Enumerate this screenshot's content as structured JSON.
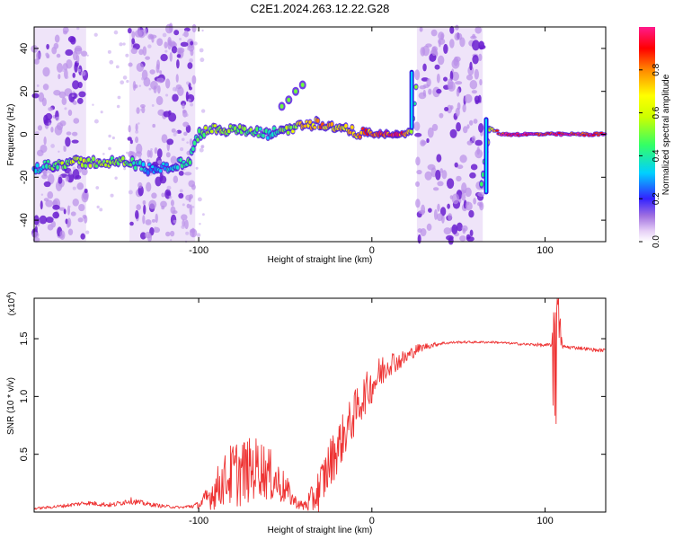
{
  "figure": {
    "title": "C2E1.2024.263.12.22.G28"
  },
  "chart_data": [
    {
      "type": "heatmap",
      "title": "C2E1.2024.263.12.22.G28",
      "xlabel": "Height of straight line (km)",
      "ylabel": "Frequency (Hz)",
      "xlim": [
        -195,
        135
      ],
      "ylim": [
        -50,
        50
      ],
      "xticks": [
        -100,
        0,
        100
      ],
      "xtick_labels": [
        "-100",
        "0",
        "100"
      ],
      "yticks": [
        -40,
        -20,
        0,
        20,
        40
      ],
      "ytick_labels": [
        "-40",
        "-20",
        "0",
        "20",
        "40"
      ],
      "colorbar": {
        "label": "Normalized spectral amplitude",
        "range": [
          0,
          1
        ],
        "ticks": [
          0.0,
          0.2,
          0.4,
          0.6,
          0.8
        ],
        "tick_labels": [
          "0.0",
          "0.2",
          "0.4",
          "0.6",
          "0.8"
        ]
      },
      "ridge": {
        "x": [
          -195,
          -185,
          -170,
          -155,
          -140,
          -130,
          -115,
          -105,
          -100,
          -90,
          -80,
          -70,
          -60,
          -52,
          -45,
          -38,
          -30,
          -20,
          -10,
          0,
          10,
          20,
          23,
          26,
          63,
          68,
          75,
          100,
          135
        ],
        "freq": [
          -16,
          -14,
          -13,
          -13,
          -13,
          -16,
          -15,
          -12,
          0,
          3,
          2,
          1,
          0,
          2,
          3,
          5,
          5,
          3,
          1,
          0,
          0,
          0,
          2,
          26,
          -25,
          3,
          0,
          0,
          0
        ],
        "amplitude": [
          0.3,
          0.5,
          0.6,
          0.55,
          0.5,
          0.3,
          0.35,
          0.45,
          0.5,
          0.6,
          0.55,
          0.5,
          0.4,
          0.5,
          0.6,
          0.75,
          0.8,
          0.7,
          0.75,
          0.85,
          0.95,
          0.9,
          0.5,
          0.5,
          0.5,
          0.6,
          1.0,
          1.0,
          1.0
        ]
      },
      "side_feature": {
        "x": [
          -52,
          -48,
          -44,
          -40
        ],
        "freq": [
          13,
          16,
          20,
          23
        ]
      },
      "noise_bands_km": [
        [
          -195,
          -165
        ],
        [
          -140,
          -102
        ],
        [
          26,
          64
        ]
      ]
    },
    {
      "type": "line",
      "xlabel": "Height of straight line (km)",
      "ylabel": "SNR (10 * v/v)",
      "multiplier_label": "(x10",
      "multiplier_exp": "4",
      "multiplier_close": ")",
      "xlim": [
        -195,
        135
      ],
      "ylim": [
        0.0,
        1.85
      ],
      "xticks": [
        -100,
        0,
        100
      ],
      "xtick_labels": [
        "-100",
        "0",
        "100"
      ],
      "yticks": [
        0.5,
        1.0,
        1.5
      ],
      "ytick_labels": [
        "0.5",
        "1.0",
        "1.5"
      ],
      "series": [
        {
          "name": "SNR",
          "color": "#ee3333",
          "x": [
            -195,
            -180,
            -165,
            -150,
            -140,
            -130,
            -120,
            -110,
            -100,
            -95,
            -90,
            -85,
            -80,
            -75,
            -70,
            -65,
            -60,
            -55,
            -50,
            -45,
            -40,
            -35,
            -30,
            -25,
            -20,
            -15,
            -10,
            -5,
            0,
            5,
            10,
            15,
            20,
            25,
            30,
            40,
            50,
            60,
            70,
            80,
            90,
            95,
            100,
            104,
            106,
            110,
            120,
            130,
            135
          ],
          "values": [
            0.03,
            0.05,
            0.08,
            0.06,
            0.1,
            0.07,
            0.05,
            0.04,
            0.06,
            0.12,
            0.2,
            0.28,
            0.33,
            0.35,
            0.36,
            0.4,
            0.33,
            0.27,
            0.2,
            0.1,
            0.05,
            0.1,
            0.2,
            0.4,
            0.55,
            0.7,
            0.85,
            1.0,
            1.1,
            1.2,
            1.3,
            1.3,
            1.34,
            1.4,
            1.43,
            1.46,
            1.47,
            1.47,
            1.47,
            1.46,
            1.45,
            1.45,
            1.44,
            1.45,
            1.85,
            1.43,
            1.42,
            1.4,
            1.4
          ],
          "noise": [
            0.01,
            0.015,
            0.02,
            0.02,
            0.03,
            0.02,
            0.015,
            0.01,
            0.03,
            0.1,
            0.18,
            0.22,
            0.3,
            0.3,
            0.28,
            0.26,
            0.24,
            0.2,
            0.14,
            0.06,
            0.04,
            0.12,
            0.22,
            0.22,
            0.22,
            0.2,
            0.2,
            0.18,
            0.16,
            0.16,
            0.12,
            0.08,
            0.07,
            0.05,
            0.03,
            0.015,
            0.01,
            0.01,
            0.01,
            0.01,
            0.012,
            0.015,
            0.015,
            0.02,
            0.4,
            0.02,
            0.015,
            0.015,
            0.015
          ]
        }
      ]
    }
  ]
}
